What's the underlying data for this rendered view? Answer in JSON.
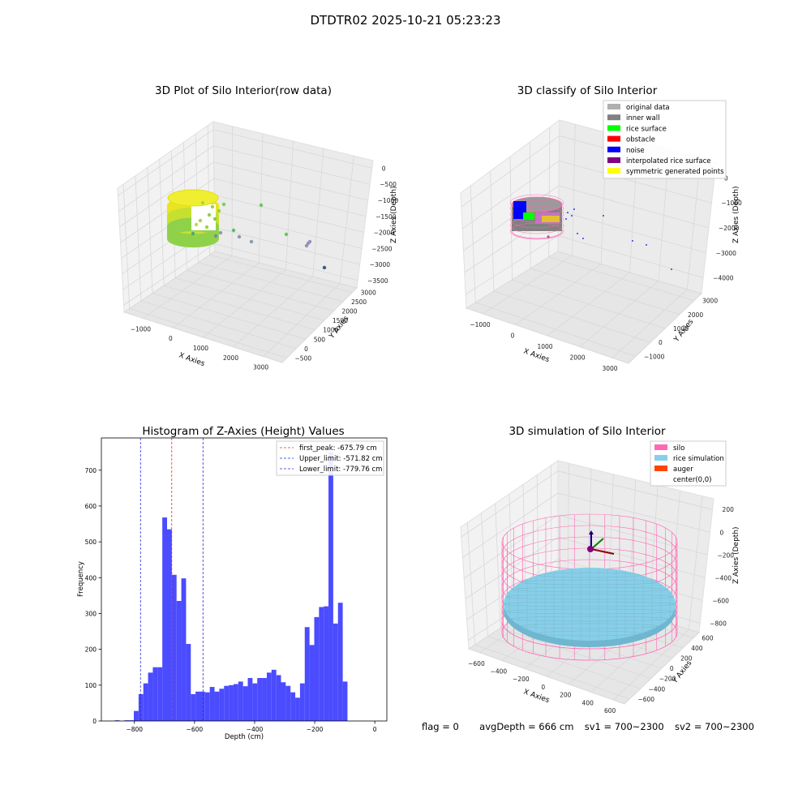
{
  "suptitle": "DTDTR02 2025-10-21 05:23:23",
  "footer": {
    "flag": "flag = 0",
    "avg_depth": "avgDepth = 666 cm",
    "sv1": "sv1 = 700~2300",
    "sv2": "sv2 = 700~2300"
  },
  "colors": {
    "hist_bar": "#4b4bff",
    "first_peak": "#e0302a",
    "limit": "#2a2ae0",
    "silo": "#ff69b4",
    "rice": "#87cfe8",
    "auger": "#ff4500"
  },
  "chart_data": [
    {
      "type": "scatter3d",
      "title": "3D Plot of Silo Interior(row data)",
      "xlabel": "X Axies",
      "ylabel": "Y Axies",
      "zlabel": "Z Axies (Depth)",
      "x_ticks": [
        "−1000",
        "0",
        "1000",
        "2000",
        "3000"
      ],
      "y_ticks": [
        "−500",
        "0",
        "500",
        "1000",
        "1500",
        "2000",
        "2500",
        "3000"
      ],
      "z_ticks": [
        "0",
        "−500",
        "−1000",
        "−1500",
        "−2000",
        "−2500",
        "−3000",
        "−3500"
      ],
      "colormap": "viridis",
      "grid": true
    },
    {
      "type": "scatter3d",
      "title": "3D classify of Silo Interior",
      "xlabel": "X Axies",
      "ylabel": "Y Axies",
      "zlabel": "Z Axies (Depth)",
      "x_ticks": [
        "−1000",
        "0",
        "1000",
        "2000",
        "3000"
      ],
      "y_ticks": [
        "−1000",
        "0",
        "1000",
        "2000",
        "3000"
      ],
      "z_ticks": [
        "0",
        "−1000",
        "−2000",
        "−3000",
        "−4000"
      ],
      "legend_position": "top-right",
      "legend": [
        {
          "name": "original data",
          "color": "#b0b0b0"
        },
        {
          "name": "inner wall",
          "color": "#808080"
        },
        {
          "name": "rice surface",
          "color": "#00ff00"
        },
        {
          "name": "obstacle",
          "color": "#ff0000"
        },
        {
          "name": "noise",
          "color": "#0000ff"
        },
        {
          "name": "interpolated rice surface",
          "color": "#800080"
        },
        {
          "name": "symmetric generated points",
          "color": "#ffff00"
        }
      ],
      "grid": true
    },
    {
      "type": "bar",
      "title": "Histogram of Z-Axies (Height) Values",
      "xlabel": "Depth (cm)",
      "ylabel": "Frequency",
      "xlim": [
        -910,
        40
      ],
      "ylim": [
        0,
        790
      ],
      "x_ticks": [
        -800,
        -600,
        -400,
        -200,
        0
      ],
      "x_tick_labels": [
        "−800",
        "−600",
        "−400",
        "−200",
        "0"
      ],
      "y_ticks": [
        0,
        100,
        200,
        300,
        400,
        500,
        600,
        700
      ],
      "bin_start": -881,
      "bin_width": 15.8,
      "values": [
        0,
        2,
        0,
        2,
        2,
        28,
        75,
        105,
        135,
        150,
        150,
        568,
        535,
        408,
        335,
        398,
        215,
        75,
        82,
        82,
        80,
        95,
        82,
        90,
        98,
        100,
        103,
        110,
        97,
        120,
        105,
        120,
        120,
        135,
        143,
        128,
        108,
        98,
        80,
        65,
        105,
        262,
        212,
        290,
        318,
        320,
        750,
        272,
        330,
        110
      ],
      "vlines": [
        {
          "x": -675.79,
          "style": "first_peak"
        },
        {
          "x": -571.82,
          "style": "limit"
        },
        {
          "x": -779.76,
          "style": "limit"
        }
      ],
      "legend_position": "top-right",
      "legend": [
        {
          "name": "first_peak: -675.79 cm",
          "style": "first_peak"
        },
        {
          "name": "Upper_limit: -571.82 cm",
          "style": "limit"
        },
        {
          "name": "Lower_limit: -779.76 cm",
          "style": "limit"
        }
      ],
      "grid": false
    },
    {
      "type": "surface3d",
      "title": "3D simulation of Silo Interior",
      "xlabel": "X Axies",
      "ylabel": "Y Axies",
      "zlabel": "Z Axies (Depth)",
      "x_ticks": [
        "−600",
        "−400",
        "−200",
        "0",
        "200",
        "400",
        "600"
      ],
      "y_ticks": [
        "−600",
        "−400",
        "−200",
        "0",
        "200",
        "400",
        "600"
      ],
      "z_ticks": [
        "200",
        "0",
        "−200",
        "−400",
        "−600",
        "−800"
      ],
      "legend_position": "top-right",
      "legend": [
        {
          "name": "silo",
          "color": "#ff69b4"
        },
        {
          "name": "rice simulation",
          "color": "#87cfe8"
        },
        {
          "name": "auger",
          "color": "#ff4500"
        },
        {
          "name": "center(0,0)",
          "color": "#ffffff"
        }
      ],
      "grid": true
    }
  ]
}
